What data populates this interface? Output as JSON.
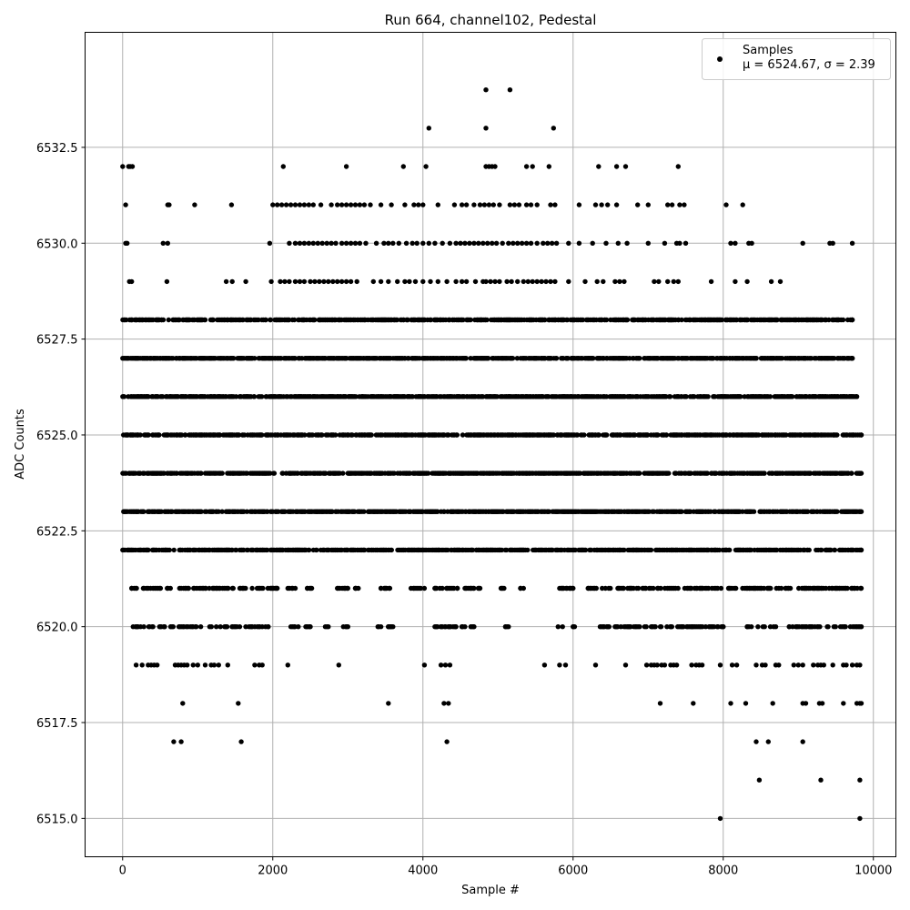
{
  "chart_data": {
    "type": "scatter",
    "title": "Run 664, channel102, Pedestal",
    "xlabel": "Sample #",
    "ylabel": "ADC Counts",
    "xlim": [
      -500,
      10300
    ],
    "ylim": [
      6514,
      6535.5
    ],
    "grid": true,
    "legend_placement": "top-right",
    "marker_color": "#000000",
    "x_ticks": [
      0,
      2000,
      4000,
      6000,
      8000,
      10000
    ],
    "x_tick_labels": [
      "0",
      "2000",
      "4000",
      "6000",
      "8000",
      "10000"
    ],
    "y_ticks": [
      6515.0,
      6517.5,
      6520.0,
      6522.5,
      6525.0,
      6527.5,
      6530.0,
      6532.5
    ],
    "y_tick_labels": [
      "6515.0",
      "6517.5",
      "6520.0",
      "6522.5",
      "6525.0",
      "6527.5",
      "6530.0",
      "6532.5"
    ],
    "series": [
      {
        "name": "Samples",
        "stats_label": "μ = 6524.67, σ = 2.39",
        "sample_count": 9840,
        "level_points": [
          {
            "y": 6534,
            "x": [
              4840,
              5160
            ]
          },
          {
            "y": 6533,
            "x": [
              4080,
              4840,
              5740
            ]
          },
          {
            "y": 6532,
            "x": [
              0,
              80,
              100,
              130,
              2140,
              2980,
              3740,
              4040,
              4840,
              4880,
              4920,
              4960,
              5380,
              5460,
              5680,
              6340,
              6580,
              6700,
              7400
            ]
          },
          {
            "y": 6531,
            "x": [
              40,
              600,
              620,
              960,
              1450,
              2000,
              2060,
              2120,
              2180,
              2240,
              2300,
              2360,
              2420,
              2480,
              2540,
              2640,
              2780,
              2860,
              2920,
              2980,
              3040,
              3100,
              3160,
              3220,
              3300,
              3440,
              3580,
              3760,
              3880,
              3940,
              4000,
              4200,
              4420,
              4520,
              4580,
              4680,
              4760,
              4820,
              4880,
              4940,
              5020,
              5160,
              5220,
              5280,
              5380,
              5440,
              5520,
              5700,
              5760,
              6080,
              6300,
              6380,
              6460,
              6580,
              6860,
              7000,
              7260,
              7320,
              7420,
              7480,
              8040,
              8260
            ]
          },
          {
            "y": 6530,
            "x": [
              40,
              60,
              540,
              600,
              1960,
              2220,
              2300,
              2360,
              2420,
              2480,
              2540,
              2600,
              2660,
              2720,
              2780,
              2840,
              2920,
              2980,
              3040,
              3100,
              3160,
              3240,
              3380,
              3480,
              3540,
              3600,
              3680,
              3780,
              3860,
              3920,
              4000,
              4080,
              4160,
              4260,
              4360,
              4440,
              4500,
              4560,
              4620,
              4680,
              4740,
              4800,
              4860,
              4920,
              4980,
              5060,
              5140,
              5200,
              5260,
              5320,
              5380,
              5440,
              5520,
              5600,
              5660,
              5720,
              5780,
              5940,
              6080,
              6260,
              6440,
              6600,
              6720,
              7000,
              7220,
              7380,
              7420,
              7500,
              8100,
              8160,
              8340,
              8380,
              9060,
              9420,
              9460,
              9720
            ]
          },
          {
            "y": 6529,
            "x": [
              90,
              120,
              590,
              1380,
              1460,
              1640,
              1980,
              2100,
              2160,
              2220,
              2300,
              2360,
              2420,
              2500,
              2560,
              2620,
              2680,
              2740,
              2800,
              2860,
              2920,
              2980,
              3040,
              3120,
              3340,
              3440,
              3540,
              3660,
              3760,
              3820,
              3900,
              4000,
              4100,
              4200,
              4320,
              4440,
              4520,
              4580,
              4700,
              4800,
              4840,
              4900,
              4960,
              5020,
              5120,
              5180,
              5260,
              5340,
              5400,
              5460,
              5520,
              5580,
              5640,
              5700,
              5760,
              5940,
              6160,
              6320,
              6400,
              6560,
              6620,
              6680,
              7080,
              7140,
              7260,
              7340,
              7400,
              7840,
              8160,
              8320,
              8640,
              8760
            ]
          }
        ],
        "dense_levels": [
          {
            "y": 6528,
            "x_range": [
              0,
              9720
            ]
          },
          {
            "y": 6527,
            "x_range": [
              0,
              9720
            ]
          },
          {
            "y": 6526,
            "x_range": [
              0,
              9780
            ]
          },
          {
            "y": 6525,
            "x_range": [
              0,
              9840
            ]
          },
          {
            "y": 6524,
            "x_range": [
              0,
              9840
            ]
          },
          {
            "y": 6523,
            "x_range": [
              0,
              9840
            ]
          },
          {
            "y": 6522,
            "x_range": [
              0,
              9840
            ]
          }
        ],
        "sparse_levels": [
          {
            "y": 6521,
            "x_ranges": [
              [
                120,
                2060
              ],
              [
                2200,
                2300
              ],
              [
                2460,
                2520
              ],
              [
                2860,
                3000
              ],
              [
                3100,
                3140
              ],
              [
                3440,
                3560
              ],
              [
                3840,
                4020
              ],
              [
                4160,
                4460
              ],
              [
                4560,
                4760
              ],
              [
                5040,
                5080
              ],
              [
                5300,
                5340
              ],
              [
                5820,
                6000
              ],
              [
                6200,
                9840
              ]
            ]
          },
          {
            "y": 6520,
            "x_ranges": [
              [
                140,
                560
              ],
              [
                640,
                1040
              ],
              [
                1160,
                1560
              ],
              [
                1640,
                1940
              ],
              [
                2240,
                2340
              ],
              [
                2440,
                2500
              ],
              [
                2700,
                2740
              ],
              [
                2940,
                3000
              ],
              [
                3400,
                3440
              ],
              [
                3540,
                3600
              ],
              [
                4160,
                4440
              ],
              [
                4520,
                4560
              ],
              [
                4640,
                4680
              ],
              [
                5100,
                5140
              ],
              [
                5800,
                5860
              ],
              [
                6000,
                6020
              ],
              [
                6360,
                6480
              ],
              [
                6560,
                6680
              ],
              [
                6700,
                8000
              ],
              [
                8320,
                8700
              ],
              [
                8880,
                9840
              ]
            ]
          }
        ],
        "low_points": [
          {
            "y": 6519,
            "x": [
              180,
              260,
              340,
              380,
              420,
              460,
              700,
              740,
              780,
              820,
              860,
              940,
              1000,
              1100,
              1180,
              1220,
              1280,
              1400,
              1760,
              1820,
              1860,
              2200,
              2880,
              4020,
              4240,
              4300,
              4360,
              5620,
              5820,
              5900,
              6300,
              6700,
              6980,
              7040,
              7080,
              7120,
              7180,
              7220,
              7300,
              7340,
              7380,
              7580,
              7640,
              7680,
              7720,
              7960,
              8120,
              8180,
              8440,
              8520,
              8560,
              8700,
              8740,
              8940,
              9000,
              9060,
              9200,
              9260,
              9300,
              9340,
              9460,
              9600,
              9640,
              9720,
              9780,
              9820
            ]
          },
          {
            "y": 6518,
            "x": [
              800,
              1540,
              3540,
              4280,
              4340,
              7160,
              7600,
              8100,
              8300,
              8660,
              9060,
              9100,
              9280,
              9320,
              9600,
              9780,
              9820,
              9840
            ]
          },
          {
            "y": 6517,
            "x": [
              680,
              780,
              1580,
              4320,
              8440,
              8600,
              9060
            ]
          },
          {
            "y": 6516,
            "x": [
              8480,
              9300,
              9820
            ]
          },
          {
            "y": 6515,
            "x": [
              7960,
              9820
            ]
          }
        ]
      }
    ]
  }
}
